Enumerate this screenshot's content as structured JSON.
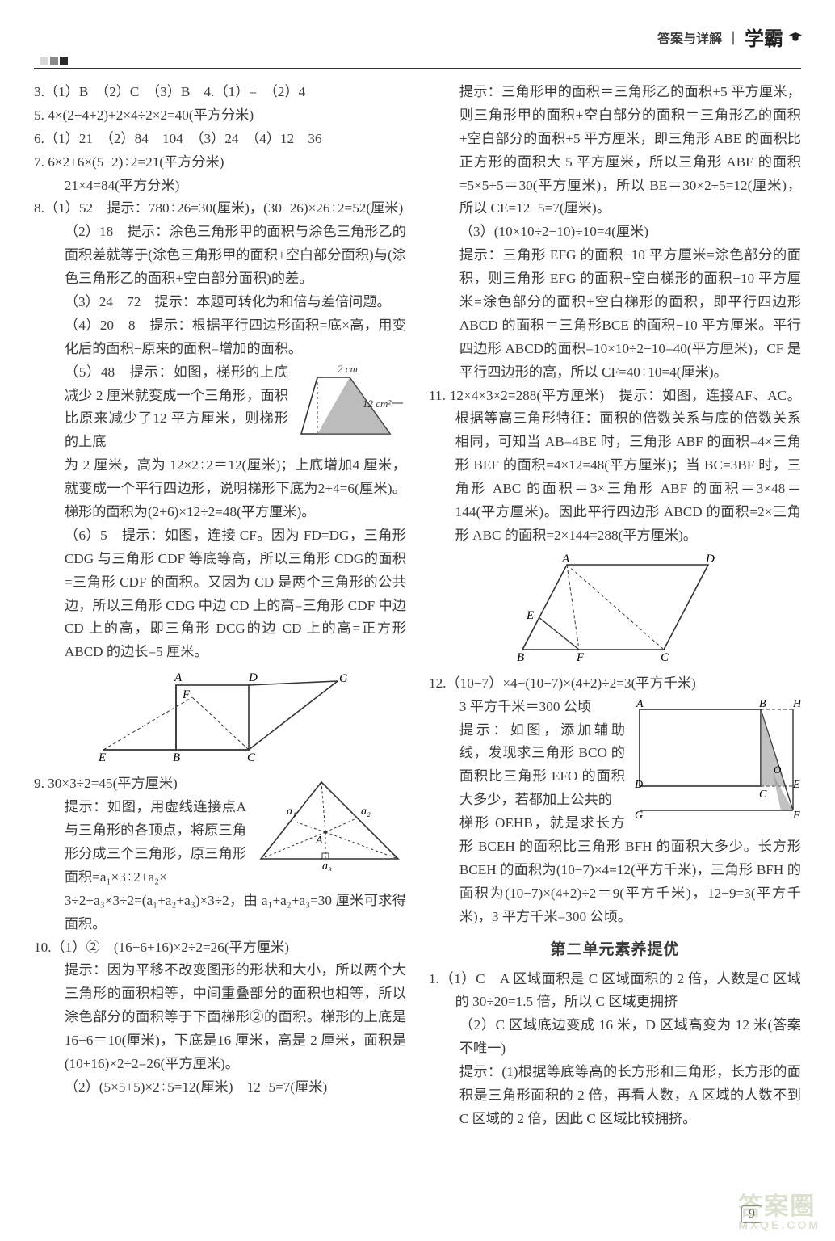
{
  "header": {
    "ans": "答案与详解",
    "sep": "｜",
    "brand": "学霸"
  },
  "pageno": "9",
  "watermark": {
    "line1": "答案圈",
    "line2": "MXQE.COM"
  },
  "sectionHead": "第二单元素养提优",
  "squares": [
    "#d9d9d9",
    "#8a8a8a",
    "#2a2a2a"
  ],
  "figs": {
    "trap": {
      "topLabel": "2 cm",
      "sideLabel": "12 cm²",
      "stroke": "#333",
      "fill": "#8f8f8f"
    },
    "triA": {
      "labels": {
        "A": "A",
        "B": "B",
        "C": "C",
        "D": "D",
        "E": "E",
        "F": "F",
        "G": "G"
      },
      "stroke": "#333"
    },
    "triB": {
      "labels": {
        "A": "A",
        "a1": "a₁",
        "a2": "a₂",
        "a3": "a₃"
      },
      "stroke": "#333"
    },
    "para": {
      "labels": {
        "A": "A",
        "B": "B",
        "C": "C",
        "D": "D",
        "E": "E",
        "F": "F"
      },
      "stroke": "#333"
    },
    "rect": {
      "labels": {
        "A": "A",
        "B": "B",
        "C": "C",
        "D": "D",
        "E": "E",
        "F": "F",
        "G": "G",
        "H": "H",
        "O": "O"
      },
      "stroke": "#333",
      "fill": "#8f8f8f"
    }
  },
  "left": [
    {
      "cls": "hang",
      "t": "3.（1）B　（2）C　（3）B　4.（1）=　（2）4"
    },
    {
      "cls": "hang",
      "t": "5. 4×(2+4+2)+2×4÷2×2=40(平方分米)"
    },
    {
      "cls": "hang",
      "t": "6.（1）21　（2）84　104　（3）24　（4）12　36"
    },
    {
      "cls": "hang",
      "t": "7. 6×2+6×(5−2)÷2=21(平方分米)"
    },
    {
      "cls": "sub",
      "t": "21×4=84(平方分米)"
    },
    {
      "cls": "hang",
      "t": "8.（1）52　提示：780÷26=30(厘米)，(30−26)×26÷2=52(厘米)"
    },
    {
      "cls": "sub",
      "t": "（2）18　提示：涂色三角形甲的面积与涂色三角形乙的面积差就等于(涂色三角形甲的面积+空白部分面积)与(涂色三角形乙的面积+空白部分面积)的差。"
    },
    {
      "cls": "sub",
      "t": "（3）24　72　提示：本题可转化为和倍与差倍问题。"
    },
    {
      "cls": "sub",
      "t": "（4）20　8　提示：根据平行四边形面积=底×高，用变化后的面积−原来的面积=增加的面积。"
    },
    {
      "cls": "sub trapwrap",
      "t": "（5）48　提示：如图，梯形的上底减少 2 厘米就变成一个三角形，面积比原来减少了12 平方厘米，则梯形的上底"
    },
    {
      "cls": "sub",
      "t": "为 2 厘米，高为 12×2÷2＝12(厘米)；上底增加4 厘米，就变成一个平行四边形，说明梯形下底为2+4=6(厘米)。梯形的面积为(2+6)×12÷2=48(平方厘米)。"
    },
    {
      "cls": "sub",
      "t": "（6）5　提示：如图，连接 CF。因为 FD=DG，三角形 CDG 与三角形 CDF 等底等高，所以三角形 CDG的面积=三角形 CDF 的面积。又因为 CD 是两个三角形的公共边，所以三角形 CDG 中边 CD 上的高=三角形 CDF 中边 CD 上的高，即三角形 DCG的边 CD 上的高=正方形 ABCD 的边长=5 厘米。"
    },
    {
      "cls": "figA"
    },
    {
      "cls": "hang tribwrap",
      "t": "9. 30×3÷2=45(平方厘米)"
    },
    {
      "cls": "sub",
      "t": "提示：如图，用虚线连接点A 与三角形的各顶点，将原三角形分成三个三角形，原三角形面积=a₁×3÷2+a₂×"
    },
    {
      "cls": "sub",
      "t": "3÷2+a₃×3÷2=(a₁+a₂+a₃)×3÷2，由 a₁+a₂+a₃=30 厘米可求得面积。"
    },
    {
      "cls": "hang",
      "t": "10.（1）②　(16−6+16)×2÷2=26(平方厘米)"
    },
    {
      "cls": "sub",
      "t": "提示：因为平移不改变图形的形状和大小，所以两个大三角形的面积相等，中间重叠部分的面积也相等，所以涂色部分的面积等于下面梯形②的面积。梯形的上底是 16−6＝10(厘米)，下底是16 厘米，高是 2 厘米，面积是(10+16)×2÷2=26(平方厘米)。"
    },
    {
      "cls": "sub",
      "t": "（2）(5×5+5)×2÷5=12(厘米)　12−5=7(厘米)"
    }
  ],
  "right": [
    {
      "cls": "sub",
      "t": "提示：三角形甲的面积＝三角形乙的面积+5 平方厘米，则三角形甲的面积+空白部分的面积＝三角形乙的面积+空白部分的面积+5 平方厘米，即三角形 ABE 的面积比正方形的面积大 5 平方厘米，所以三角形 ABE 的面积=5×5+5＝30(平方厘米)，所以 BE＝30×2÷5=12(厘米)，所以 CE=12−5=7(厘米)。"
    },
    {
      "cls": "sub",
      "t": "（3）(10×10÷2−10)÷10=4(厘米)"
    },
    {
      "cls": "sub",
      "t": "提示：三角形 EFG 的面积−10 平方厘米=涂色部分的面积，则三角形 EFG 的面积+空白梯形的面积−10 平方厘米=涂色部分的面积+空白梯形的面积，即平行四边形 ABCD 的面积＝三角形BCE 的面积−10 平方厘米。平行四边形 ABCD的面积=10×10÷2−10=40(平方厘米)，CF 是平行四边形的高，所以 CF=40÷10=4(厘米)。"
    },
    {
      "cls": "hang",
      "t": "11. 12×4×3×2=288(平方厘米)　提示：如图，连接AF、AC。根据等高三角形特征：面积的倍数关系与底的倍数关系相同，可知当 AB=4BE 时，三角形 ABF 的面积=4×三角形 BEF 的面积=4×12=48(平方厘米)；当 BC=3BF 时，三角形 ABC 的面积＝3×三角形 ABF 的面积＝3×48＝144(平方厘米)。因此平行四边形 ABCD 的面积=2×三角形 ABC 的面积=2×144=288(平方厘米)。"
    },
    {
      "cls": "figPara"
    },
    {
      "cls": "hang",
      "t": "12.（10−7）×4−(10−7)×(4+2)÷2=3(平方千米)"
    },
    {
      "cls": "sub rectwrap",
      "t": "3 平方千米＝300 公顷"
    },
    {
      "cls": "sub",
      "t": "提示：如图，添加辅助线，发现求三角形 BCO 的面积比三角形 EFO 的面积大多少，若都加上公共的"
    },
    {
      "cls": "sub",
      "t": "梯形 OEHB，就是求长方形 BCEH 的面积比三角形 BFH 的面积大多少。长方形 BCEH 的面积为(10−7)×4=12(平方千米)，三角形 BFH 的面积为(10−7)×(4+2)÷2＝9(平方千米)，12−9=3(平方千米)，3 平方千米=300 公顷。"
    },
    {
      "cls": "head"
    },
    {
      "cls": "hang",
      "t": "1.（1）C　A 区域面积是 C 区域面积的 2 倍，人数是C 区域的 30÷20=1.5 倍，所以 C 区域更拥挤"
    },
    {
      "cls": "sub",
      "t": "（2）C 区域底边变成 16 米，D 区域高变为 12 米(答案不唯一)"
    },
    {
      "cls": "sub",
      "t": "提示：(1)根据等底等高的长方形和三角形，长方形的面积是三角形面积的 2 倍，再看人数，A 区域的人数不到 C 区域的 2 倍，因此 C 区域比较拥挤。"
    }
  ]
}
